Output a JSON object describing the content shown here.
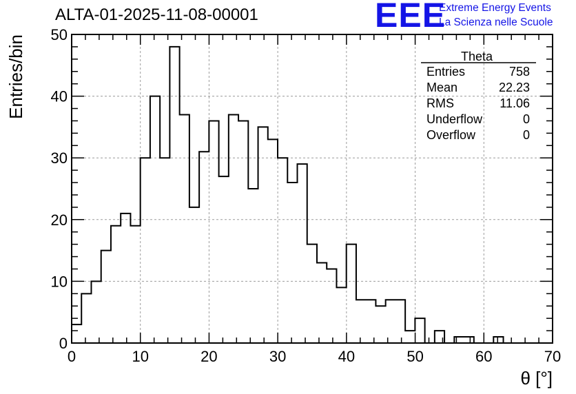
{
  "title": "ALTA-01-2025-11-08-00001",
  "logo": {
    "letters": "EEE",
    "line1": "Extreme Energy Events",
    "line2": "La Scienza nelle Scuole",
    "color": "#1414e6"
  },
  "chart_data": {
    "type": "bar",
    "histogram": true,
    "xlabel": "θ [°]",
    "ylabel": "Entries/bin",
    "xlim": [
      0,
      70
    ],
    "ylim": [
      0,
      50
    ],
    "grid": true,
    "bin_width": 1.428,
    "x_ticks": [
      0,
      10,
      20,
      30,
      40,
      50,
      60,
      70
    ],
    "y_ticks": [
      0,
      10,
      20,
      30,
      40,
      50
    ],
    "values": [
      3,
      8,
      10,
      15,
      19,
      21,
      19,
      30,
      40,
      30,
      48,
      37,
      22,
      31,
      36,
      27,
      37,
      36,
      25,
      35,
      33,
      30,
      26,
      29,
      16,
      13,
      12,
      9,
      16,
      7,
      7,
      6,
      7,
      7,
      2,
      4,
      0,
      2,
      0,
      1,
      1,
      0,
      0,
      1,
      0,
      0,
      0,
      0,
      0
    ]
  },
  "stats_box": {
    "title": "Theta",
    "rows": [
      {
        "label": "Entries",
        "value": "758"
      },
      {
        "label": "Mean",
        "value": "22.23"
      },
      {
        "label": "RMS",
        "value": "11.06"
      },
      {
        "label": "Underflow",
        "value": "0"
      },
      {
        "label": "Overflow",
        "value": "0"
      }
    ]
  }
}
